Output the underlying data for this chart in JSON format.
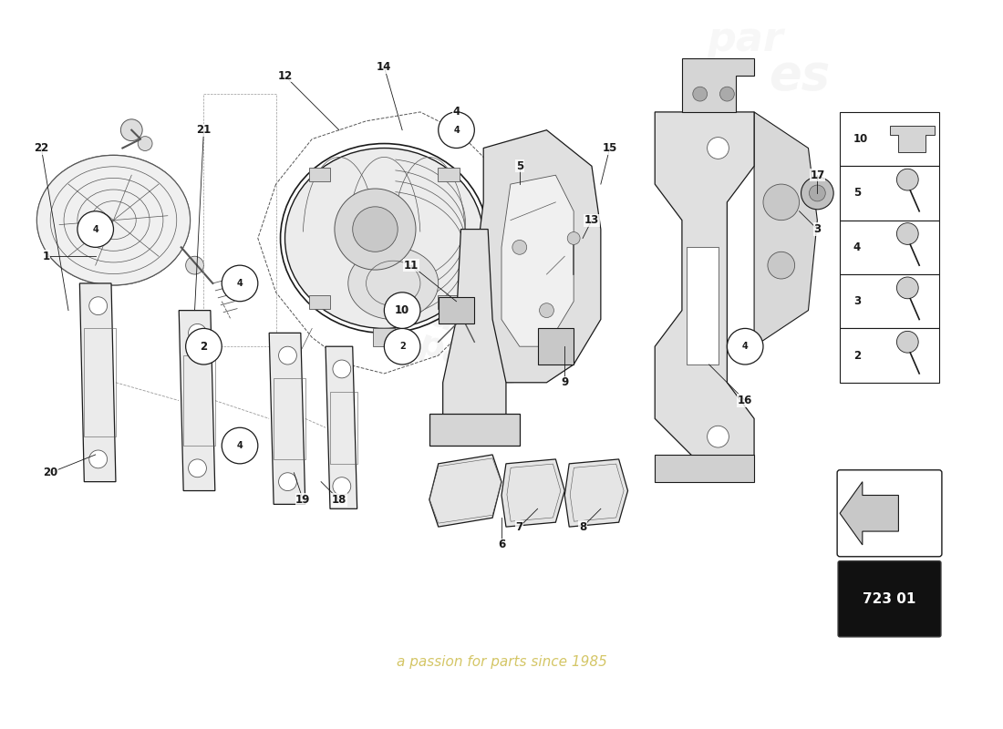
{
  "bg_color": "#ffffff",
  "catalog_number": "723 01",
  "watermark": "a passion for parts since 1985",
  "dark": "#1a1a1a",
  "gray": "#555555",
  "lgray": "#999999",
  "part_fill": "#e8e8e8",
  "legend_items": [
    "10",
    "5",
    "4",
    "3",
    "2"
  ],
  "figsize": [
    11.0,
    8.0
  ],
  "dpi": 100
}
